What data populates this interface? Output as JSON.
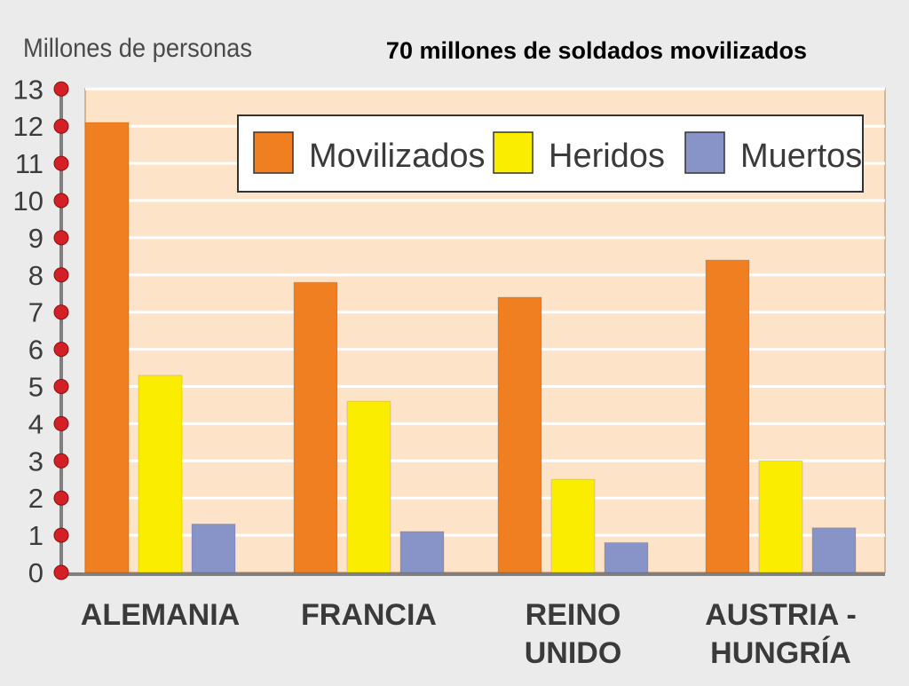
{
  "chart_data": {
    "type": "bar",
    "title": "70 millones de soldados  movilizados",
    "ylabel": "Millones de personas",
    "xlabel": "",
    "ylim": [
      0,
      13
    ],
    "yticks": [
      0,
      1,
      2,
      3,
      4,
      5,
      6,
      7,
      8,
      9,
      10,
      11,
      12,
      13
    ],
    "grid": true,
    "legend_position": "top-right",
    "categories": [
      [
        "ALEMANIA"
      ],
      [
        "FRANCIA"
      ],
      [
        "REINO",
        "UNIDO"
      ],
      [
        "AUSTRIA -",
        "HUNGRÍA"
      ]
    ],
    "series": [
      {
        "name": "Movilizados",
        "color": "#f07f22",
        "values": [
          12.1,
          7.8,
          7.4,
          8.4
        ]
      },
      {
        "name": "Heridos",
        "color": "#fbed00",
        "values": [
          5.3,
          4.6,
          2.5,
          3.0
        ]
      },
      {
        "name": "Muertos",
        "color": "#8893c8",
        "values": [
          1.3,
          1.1,
          0.8,
          1.2
        ]
      }
    ],
    "colors": {
      "plot_background": "#fde3c8",
      "gridline": "#ffffff",
      "axis": "#7f7f7f",
      "tick_marker": "#d31f26"
    }
  }
}
